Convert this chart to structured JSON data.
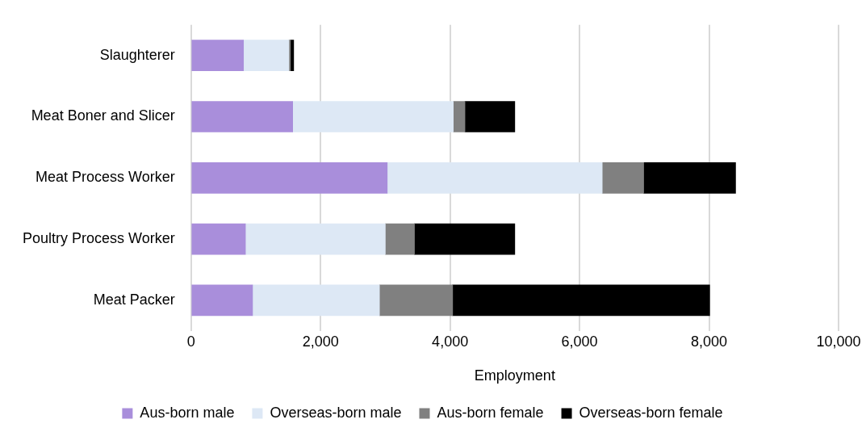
{
  "chart_data": {
    "type": "bar",
    "orientation": "horizontal",
    "stacked": true,
    "categories": [
      "Slaughterer",
      "Meat Boner and Slicer",
      "Meat Process Worker",
      "Poultry Process Worker",
      "Meat Packer"
    ],
    "series": [
      {
        "name": "Aus-born male",
        "color": "#a98edb",
        "values": [
          810,
          1570,
          3030,
          840,
          950
        ]
      },
      {
        "name": "Overseas-born male",
        "color": "#dde8f5",
        "values": [
          700,
          2480,
          3320,
          2160,
          1960
        ]
      },
      {
        "name": "Aus-born female",
        "color": "#808080",
        "values": [
          25,
          180,
          640,
          450,
          1130
        ]
      },
      {
        "name": "Overseas-born female",
        "color": "#000000",
        "values": [
          50,
          770,
          1420,
          1550,
          3970
        ]
      }
    ],
    "xlabel": "Employment",
    "xlim": [
      0,
      10000
    ],
    "xticks": [
      {
        "value": 0,
        "label": "0"
      },
      {
        "value": 2000,
        "label": "2,000"
      },
      {
        "value": 4000,
        "label": "4,000"
      },
      {
        "value": 6000,
        "label": "6,000"
      },
      {
        "value": 8000,
        "label": "8,000"
      },
      {
        "value": 10000,
        "label": "10,000"
      }
    ],
    "grid": "x",
    "legend": "bottom"
  }
}
